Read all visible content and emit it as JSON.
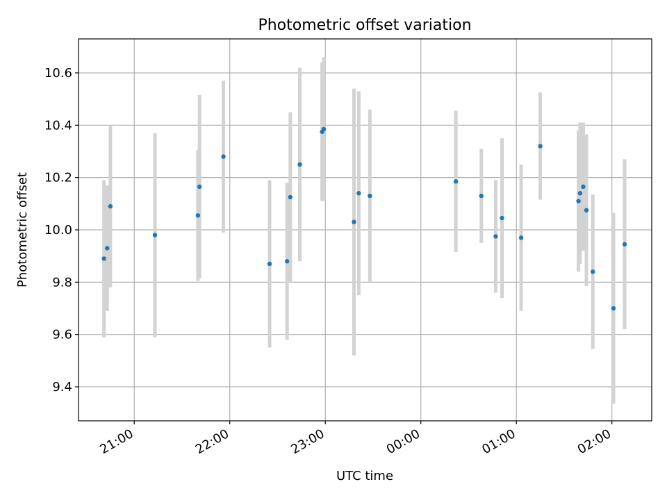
{
  "chart_data": {
    "type": "scatter",
    "title": "Photometric offset variation",
    "xlabel": "UTC time",
    "ylabel": "Photometric offset",
    "x_tick_labels": [
      "21:00",
      "22:00",
      "23:00",
      "00:00",
      "01:00",
      "02:00"
    ],
    "y_tick_labels": [
      "9.4",
      "9.6",
      "9.8",
      "10.0",
      "10.2",
      "10.4",
      "10.6"
    ],
    "y_ticks": [
      9.4,
      9.6,
      9.8,
      10.0,
      10.2,
      10.4,
      10.6
    ],
    "xlim": [
      "20:25",
      "02:25"
    ],
    "ylim": [
      9.27,
      10.73
    ],
    "grid": true,
    "colors": {
      "point": "#1f77b4",
      "errorbar": "#d3d3d3",
      "grid": "#b0b0b0"
    },
    "points": [
      {
        "time": "20:41",
        "y": 9.89,
        "err": 0.3
      },
      {
        "time": "20:43",
        "y": 9.93,
        "err": 0.24
      },
      {
        "time": "20:45",
        "y": 10.09,
        "err": 0.31
      },
      {
        "time": "21:13",
        "y": 9.98,
        "err": 0.39
      },
      {
        "time": "21:40",
        "y": 10.055,
        "err": 0.25
      },
      {
        "time": "21:41",
        "y": 10.165,
        "err": 0.35
      },
      {
        "time": "21:56",
        "y": 10.28,
        "err": 0.29
      },
      {
        "time": "22:25",
        "y": 9.87,
        "err": 0.32
      },
      {
        "time": "22:36",
        "y": 9.88,
        "err": 0.3
      },
      {
        "time": "22:38",
        "y": 10.125,
        "err": 0.325
      },
      {
        "time": "22:44",
        "y": 10.25,
        "err": 0.37
      },
      {
        "time": "22:58",
        "y": 10.375,
        "err": 0.265
      },
      {
        "time": "22:59",
        "y": 10.385,
        "err": 0.275
      },
      {
        "time": "23:18",
        "y": 10.03,
        "err": 0.51
      },
      {
        "time": "23:21",
        "y": 10.14,
        "err": 0.39
      },
      {
        "time": "23:28",
        "y": 10.13,
        "err": 0.33
      },
      {
        "time": "00:22",
        "y": 10.185,
        "err": 0.27
      },
      {
        "time": "00:38",
        "y": 10.13,
        "err": 0.18
      },
      {
        "time": "00:47",
        "y": 9.975,
        "err": 0.215
      },
      {
        "time": "00:51",
        "y": 10.045,
        "err": 0.305
      },
      {
        "time": "01:03",
        "y": 9.97,
        "err": 0.28
      },
      {
        "time": "01:15",
        "y": 10.32,
        "err": 0.205
      },
      {
        "time": "01:39",
        "y": 10.11,
        "err": 0.27
      },
      {
        "time": "01:40",
        "y": 10.14,
        "err": 0.27
      },
      {
        "time": "01:42",
        "y": 10.165,
        "err": 0.245
      },
      {
        "time": "01:44",
        "y": 10.075,
        "err": 0.29
      },
      {
        "time": "01:48",
        "y": 9.84,
        "err": 0.295
      },
      {
        "time": "02:01",
        "y": 9.7,
        "err": 0.365
      },
      {
        "time": "02:08",
        "y": 9.945,
        "err": 0.325
      }
    ]
  }
}
